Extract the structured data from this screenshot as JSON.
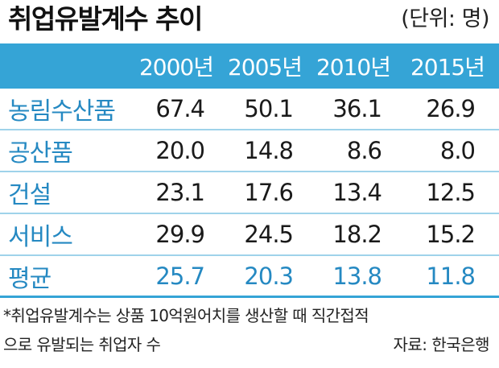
{
  "title": "취업유발계수 추이",
  "unit": "(단위: 명)",
  "table": {
    "headers": [
      "2000년",
      "2005년",
      "2010년",
      "2015년"
    ],
    "rows": [
      {
        "label": "농림수산품",
        "values": [
          "67.4",
          "50.1",
          "36.1",
          "26.9"
        ]
      },
      {
        "label": "공산품",
        "values": [
          "20.0",
          "14.8",
          "8.6",
          "8.0"
        ]
      },
      {
        "label": "건설",
        "values": [
          "23.1",
          "17.6",
          "13.4",
          "12.5"
        ]
      },
      {
        "label": "서비스",
        "values": [
          "29.9",
          "24.5",
          "18.2",
          "15.2"
        ]
      },
      {
        "label": "평균",
        "values": [
          "25.7",
          "20.3",
          "13.8",
          "11.8"
        ]
      }
    ]
  },
  "footnote": {
    "line1": "*취업유발계수는 상품 10억원어치를 생산할 때 직간접적",
    "line2": "으로 유발되는 취업자 수"
  },
  "source": "자료: 한국은행",
  "colors": {
    "header_bg": "#35a4d6",
    "label_text": "#2589c2",
    "row_divider": "#9fd3ea"
  }
}
